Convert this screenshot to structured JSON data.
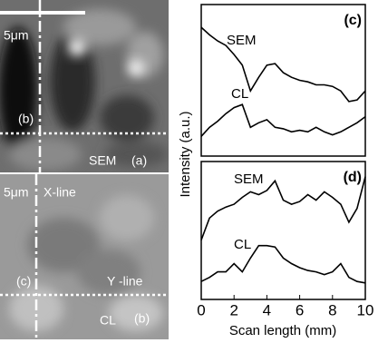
{
  "images": {
    "sem": {
      "scale": "5μm",
      "line_label": "(b)",
      "name": "SEM",
      "panel": "(a)"
    },
    "cl": {
      "scale": "5μm",
      "x_line": "X-line",
      "line_label": "(c)",
      "y_line": "Y -line",
      "name": "CL",
      "panel": "(b)"
    }
  },
  "chart_data": [
    {
      "type": "line",
      "panel": "(c)",
      "xlabel": "Scan length (mm)",
      "ylabel": "Intensity (a.u.)",
      "x": [
        0,
        0.5,
        1,
        1.5,
        2,
        2.5,
        3,
        3.5,
        4,
        4.5,
        5,
        5.5,
        6,
        6.5,
        7,
        7.5,
        8,
        8.5,
        9,
        9.5,
        10
      ],
      "xlim": [
        0,
        10
      ],
      "ylim": [
        0,
        1
      ],
      "series": [
        {
          "name": "SEM",
          "color": "#000000",
          "values": [
            0.85,
            0.8,
            0.76,
            0.73,
            0.67,
            0.6,
            0.43,
            0.52,
            0.6,
            0.61,
            0.55,
            0.52,
            0.5,
            0.49,
            0.47,
            0.47,
            0.46,
            0.43,
            0.36,
            0.37,
            0.43
          ]
        },
        {
          "name": "CL",
          "color": "#000000",
          "values": [
            0.13,
            0.19,
            0.23,
            0.28,
            0.32,
            0.34,
            0.19,
            0.22,
            0.24,
            0.19,
            0.18,
            0.16,
            0.17,
            0.16,
            0.19,
            0.16,
            0.14,
            0.16,
            0.19,
            0.22,
            0.26
          ]
        }
      ]
    },
    {
      "type": "line",
      "panel": "(d)",
      "x": [
        0,
        0.5,
        1,
        1.5,
        2,
        2.5,
        3,
        3.5,
        4,
        4.5,
        5,
        5.5,
        6,
        6.5,
        7,
        7.5,
        8,
        8.5,
        9,
        9.5,
        10
      ],
      "xlim": [
        0,
        10
      ],
      "ylim": [
        0,
        1
      ],
      "xticks": [
        0,
        2,
        4,
        6,
        8,
        10
      ],
      "series": [
        {
          "name": "SEM",
          "color": "#000000",
          "values": [
            0.43,
            0.59,
            0.64,
            0.67,
            0.69,
            0.74,
            0.78,
            0.76,
            0.79,
            0.86,
            0.72,
            0.69,
            0.71,
            0.76,
            0.72,
            0.78,
            0.74,
            0.69,
            0.56,
            0.66,
            0.89
          ]
        },
        {
          "name": "CL",
          "color": "#000000",
          "values": [
            0.13,
            0.16,
            0.2,
            0.2,
            0.26,
            0.2,
            0.3,
            0.39,
            0.39,
            0.38,
            0.3,
            0.26,
            0.23,
            0.21,
            0.2,
            0.18,
            0.2,
            0.26,
            0.16,
            0.13,
            0.12
          ]
        }
      ]
    }
  ]
}
